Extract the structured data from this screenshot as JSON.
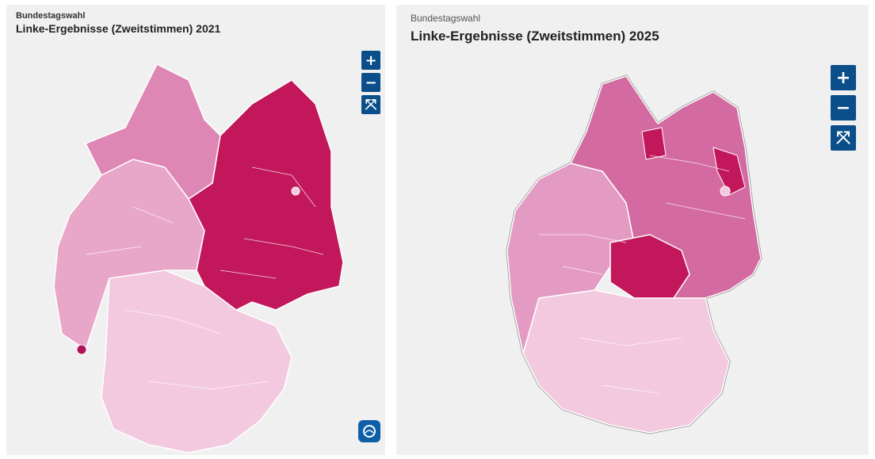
{
  "maps": [
    {
      "kicker": "Bundestagswahl",
      "title": "Linke-Ergebnisse (Zweitstimmen) 2021",
      "zoom_in_label": "+",
      "zoom_out_label": "−",
      "reset_label": "⤧",
      "colors": {
        "east": "#c2185b",
        "north_west": "#df87b4",
        "west": "#e8a6c9",
        "south": "#f2c9df",
        "border": "#ffffff"
      }
    },
    {
      "kicker": "Bundestagswahl",
      "title": "Linke-Ergebnisse (Zweitstimmen) 2025",
      "zoom_in_label": "+",
      "zoom_out_label": "−",
      "reset_label": "⤧",
      "colors": {
        "east": "#d46aa2",
        "thuringia": "#c2185b",
        "west": "#e49bc3",
        "south": "#f2c9df",
        "border": "#ffffff",
        "outline": "#8c8c8c"
      }
    }
  ],
  "brand": {
    "name": "tagesschau-logo",
    "color": "#0d5fa8"
  }
}
